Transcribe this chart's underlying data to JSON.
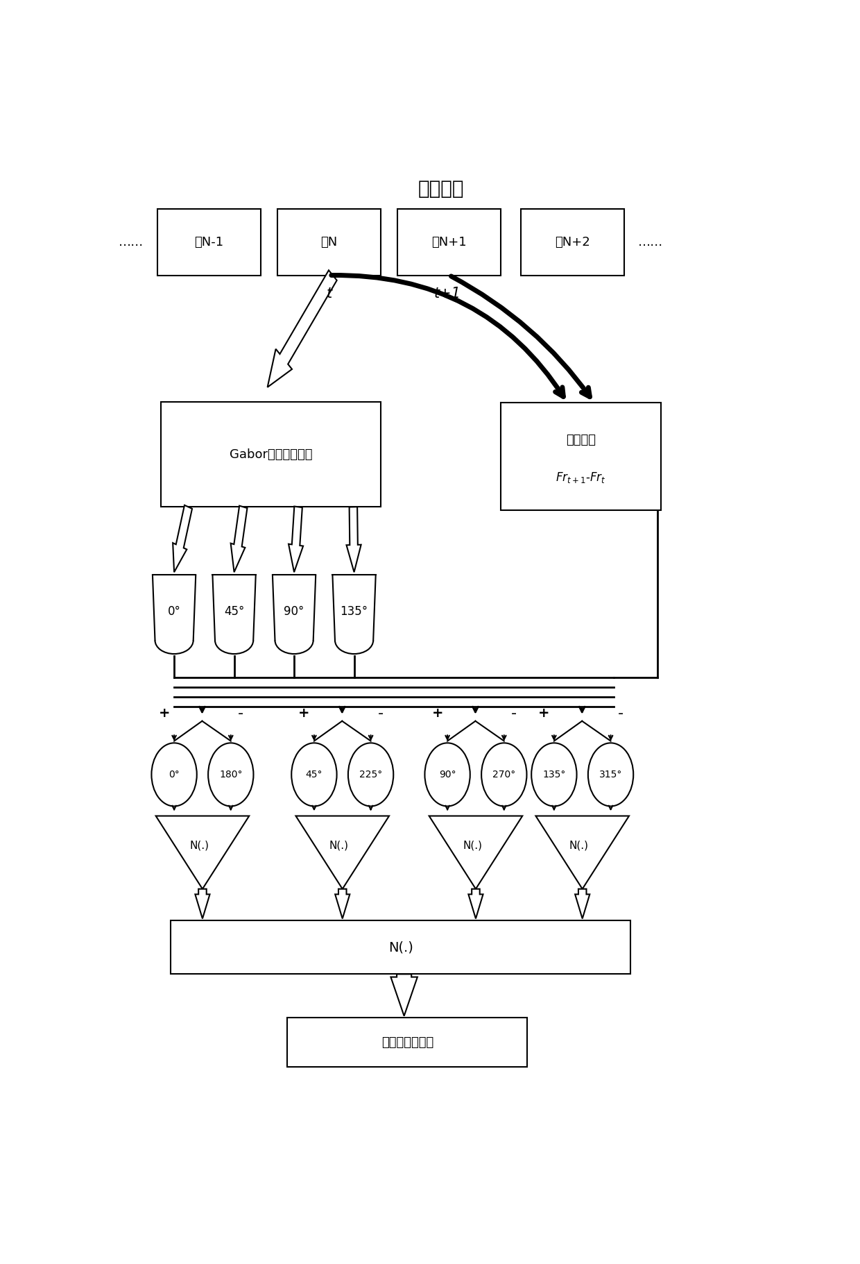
{
  "title": "图像序列",
  "frame_labels": [
    "帧N-1",
    "帧N",
    "帧N+1",
    "帧N+2"
  ],
  "gabor_label": "Gabor滤波边缘提取",
  "frame_diff_label1": "帧间差分",
  "frame_diff_label2": "Fr_{t+1}-Fr_t",
  "filter_labels": [
    "0°",
    "45°",
    "90°",
    "135°"
  ],
  "direction_pairs": [
    [
      "0°",
      "180°"
    ],
    [
      "45°",
      "225°"
    ],
    [
      "90°",
      "270°"
    ],
    [
      "135°",
      "315°"
    ]
  ],
  "output_label": "运动方向显著图",
  "fig_w": 12.4,
  "fig_h": 18.21,
  "dpi": 100
}
